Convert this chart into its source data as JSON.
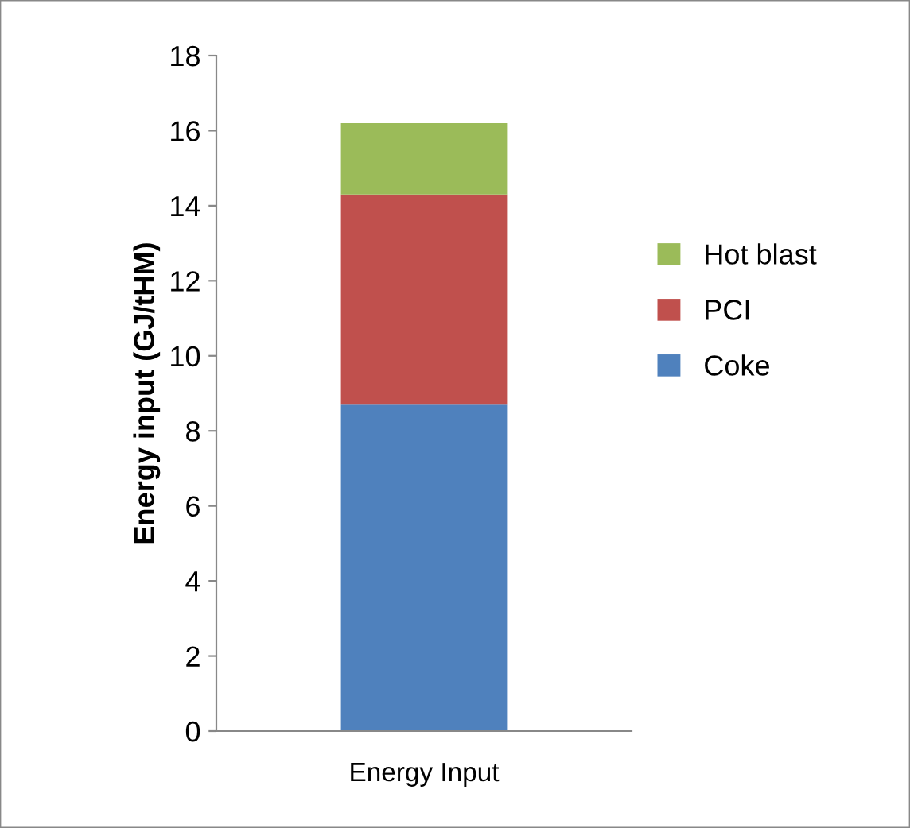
{
  "chart_data": {
    "type": "bar",
    "stacked": true,
    "ylabel": "Energy input (GJ/tHM)",
    "categories": [
      "Energy Input"
    ],
    "series": [
      {
        "name": "Coke",
        "color": "#4f81bd",
        "values": [
          8.7
        ]
      },
      {
        "name": "PCI",
        "color": "#c0504d",
        "values": [
          5.6
        ]
      },
      {
        "name": "Hot blast",
        "color": "#9bbb59",
        "values": [
          1.9
        ]
      }
    ],
    "ylim": [
      0,
      18
    ],
    "yticks": [
      0,
      2,
      4,
      6,
      8,
      10,
      12,
      14,
      16,
      18
    ],
    "grid": false,
    "legend": "right"
  }
}
